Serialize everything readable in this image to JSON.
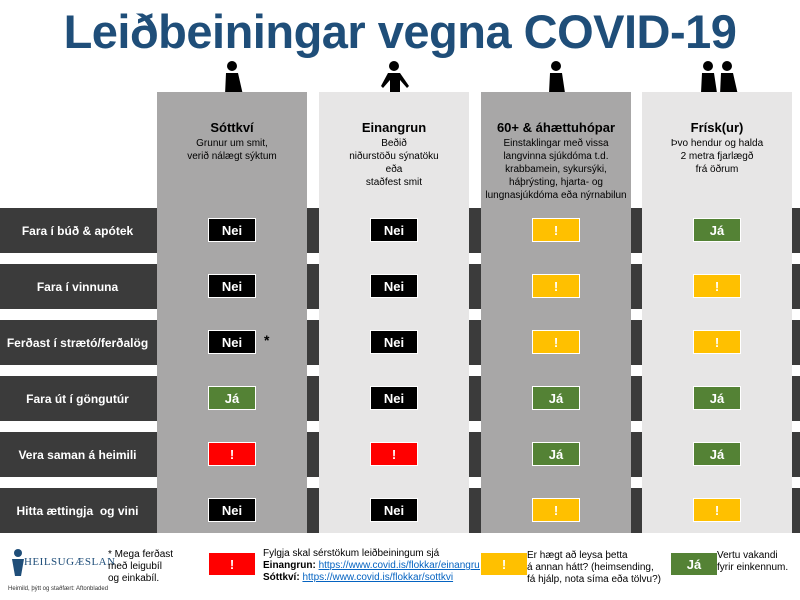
{
  "title": "Leiðbeiningar vegna COVID-19",
  "columns": [
    {
      "name": "Sóttkví",
      "description": [
        "Grunur um smit,",
        "verið nálægt sýktum"
      ],
      "background": "#a8a7a7"
    },
    {
      "name": "Einangrun",
      "description": [
        "Beðið",
        "niðurstöðu sýnatöku",
        "eða",
        "staðfest smit"
      ],
      "background": "#e7e6e6"
    },
    {
      "name": "60+ & áhættuhópar",
      "description": [
        "Einstaklingar með vissa",
        "langvinna sjúkdóma t.d.",
        "krabbamein, sykursýki,",
        "háþrýsting, hjarta- og",
        "lungnasjúkdóma eða nýrnabilun"
      ],
      "background": "#a8a7a7"
    },
    {
      "name": "Frísk(ur)",
      "description": [
        "Þvo hendur og halda",
        "2 metra fjarlægð",
        "frá öðrum"
      ],
      "background": "#e7e6e6"
    }
  ],
  "rows": [
    {
      "label": "Fara í búð & apótek",
      "cells": [
        {
          "text": "Nei",
          "color": "#000000"
        },
        {
          "text": "Nei",
          "color": "#000000"
        },
        {
          "text": "!",
          "color": "#ffc000"
        },
        {
          "text": "Já",
          "color": "#548235"
        }
      ]
    },
    {
      "label": "Fara í vinnuna",
      "cells": [
        {
          "text": "Nei",
          "color": "#000000"
        },
        {
          "text": "Nei",
          "color": "#000000"
        },
        {
          "text": "!",
          "color": "#ffc000"
        },
        {
          "text": "!",
          "color": "#ffc000"
        }
      ]
    },
    {
      "label": "Ferðast í strætó/ferðalög",
      "cells": [
        {
          "text": "Nei",
          "color": "#000000",
          "note": "*"
        },
        {
          "text": "Nei",
          "color": "#000000"
        },
        {
          "text": "!",
          "color": "#ffc000"
        },
        {
          "text": "!",
          "color": "#ffc000"
        }
      ]
    },
    {
      "label": "Fara út í göngutúr",
      "cells": [
        {
          "text": "Já",
          "color": "#548235"
        },
        {
          "text": "Nei",
          "color": "#000000"
        },
        {
          "text": "Já",
          "color": "#548235"
        },
        {
          "text": "Já",
          "color": "#548235"
        }
      ]
    },
    {
      "label": "Vera saman á heimili",
      "cells": [
        {
          "text": "!",
          "color": "#ff0000"
        },
        {
          "text": "!",
          "color": "#ff0000"
        },
        {
          "text": "Já",
          "color": "#548235"
        },
        {
          "text": "Já",
          "color": "#548235"
        }
      ]
    },
    {
      "label": "Hitta ættingja  og vini",
      "cells": [
        {
          "text": "Nei",
          "color": "#000000"
        },
        {
          "text": "Nei",
          "color": "#000000"
        },
        {
          "text": "!",
          "color": "#ffc000"
        },
        {
          "text": "!",
          "color": "#ffc000"
        }
      ]
    }
  ],
  "footer": {
    "logo": "HEILSUGÆSLAN",
    "source": "Heimild, þýtt og staðfært: Aftonbladed",
    "footnote": [
      "* Mega ferðast",
      "með leigubíl",
      "og einkabíl."
    ],
    "legend": [
      {
        "badge": "!",
        "color": "#ff0000",
        "intro": "Fylgja skal sérstökum leiðbeiningum sjá",
        "links": [
          {
            "label": "Einangrun:",
            "url": "https://www.covid.is/flokkar/einangrun"
          },
          {
            "label": "Sóttkví:",
            "url": "https://www.covid.is/flokkar/sottkvi"
          }
        ]
      },
      {
        "badge": "!",
        "color": "#ffc000",
        "lines": [
          "Er hægt að leysa þetta",
          "á annan hátt? (heimsending,",
          "fá hjálp, nota síma eða tölvu?)"
        ]
      },
      {
        "badge": "Já",
        "color": "#548235",
        "lines": [
          "Vertu vakandi",
          "fyrir einkennum."
        ]
      }
    ]
  }
}
